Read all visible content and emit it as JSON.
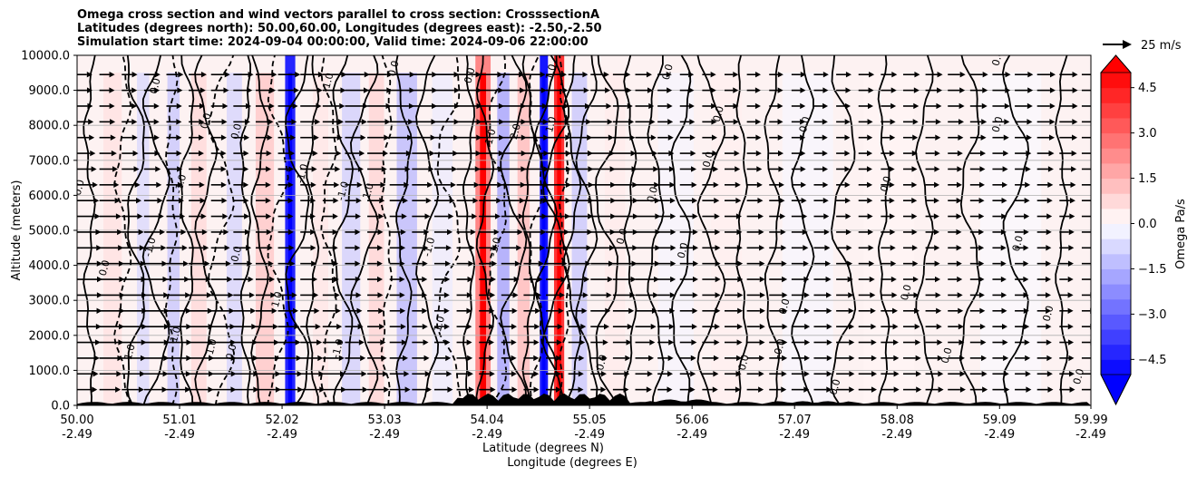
{
  "chart_data": {
    "type": "heatmap",
    "title_lines": [
      "Omega cross section and wind vectors parallel to cross section: CrosssectionA",
      "Latitudes (degrees north): 50.00,60.00, Longitudes (degrees east): -2.50,-2.50",
      "Simulation start time: 2024-09-04 00:00:00, Valid time: 2024-09-06 22:00:00"
    ],
    "ylabel": "Altitude (meters)",
    "xlabel_lat": "Latitude (degrees N)",
    "xlabel_lon": "Longitude (degrees E)",
    "ylim": [
      0,
      10000
    ],
    "y_ticks": [
      0,
      1000,
      2000,
      3000,
      4000,
      5000,
      6000,
      7000,
      8000,
      9000,
      10000
    ],
    "y_tick_labels": [
      "0.0",
      "1000.0",
      "2000.0",
      "3000.0",
      "4000.0",
      "5000.0",
      "6000.0",
      "7000.0",
      "8000.0",
      "9000.0",
      "10000.0"
    ],
    "xlim": [
      50.0,
      59.99
    ],
    "x_ticks": [
      {
        "lat": "50.00",
        "lon": "-2.49"
      },
      {
        "lat": "51.01",
        "lon": "-2.49"
      },
      {
        "lat": "52.02",
        "lon": "-2.49"
      },
      {
        "lat": "53.03",
        "lon": "-2.49"
      },
      {
        "lat": "54.04",
        "lon": "-2.49"
      },
      {
        "lat": "55.05",
        "lon": "-2.49"
      },
      {
        "lat": "56.06",
        "lon": "-2.49"
      },
      {
        "lat": "57.07",
        "lon": "-2.49"
      },
      {
        "lat": "58.08",
        "lon": "-2.49"
      },
      {
        "lat": "59.09",
        "lon": "-2.49"
      },
      {
        "lat": "59.99",
        "lon": "-2.49"
      }
    ],
    "grid": true,
    "colorbar": {
      "label": "Omega Pa/s",
      "range": [
        -5.0,
        5.0
      ],
      "ticks": [
        -4.5,
        -3.0,
        -1.5,
        0.0,
        1.5,
        3.0,
        4.5
      ],
      "tick_labels": [
        "−4.5",
        "−3.0",
        "−1.5",
        "0.0",
        "1.5",
        "3.0",
        "4.5"
      ],
      "extend": "both",
      "low_color": "#0000ff",
      "high_color": "#ff0000",
      "mid_color": "#ffffff"
    },
    "quiver_key": {
      "label": "25 m/s",
      "speed": 25
    },
    "omega_bands": [
      {
        "lat": 50.35,
        "w": 0.18,
        "v": 0.6
      },
      {
        "lat": 50.65,
        "w": 0.12,
        "v": -0.8
      },
      {
        "lat": 50.95,
        "w": 0.12,
        "v": -1.2
      },
      {
        "lat": 51.2,
        "w": 0.15,
        "v": 0.8
      },
      {
        "lat": 51.55,
        "w": 0.15,
        "v": -0.9
      },
      {
        "lat": 51.85,
        "w": 0.18,
        "v": 1.2
      },
      {
        "lat": 52.1,
        "w": 0.1,
        "v": -4.5
      },
      {
        "lat": 52.4,
        "w": 0.15,
        "v": 0.5
      },
      {
        "lat": 52.7,
        "w": 0.18,
        "v": -1.0
      },
      {
        "lat": 52.95,
        "w": 0.15,
        "v": 0.9
      },
      {
        "lat": 53.25,
        "w": 0.2,
        "v": -1.5
      },
      {
        "lat": 53.6,
        "w": 0.2,
        "v": -0.4
      },
      {
        "lat": 54.0,
        "w": 0.15,
        "v": 2.5
      },
      {
        "lat": 54.2,
        "w": 0.12,
        "v": -2.0
      },
      {
        "lat": 54.4,
        "w": 0.12,
        "v": 1.5
      },
      {
        "lat": 54.6,
        "w": 0.08,
        "v": -4.8
      },
      {
        "lat": 54.75,
        "w": 0.1,
        "v": 4.2
      },
      {
        "lat": 54.95,
        "w": 0.15,
        "v": -1.2
      },
      {
        "lat": 55.3,
        "w": 0.2,
        "v": 0.4
      },
      {
        "lat": 55.9,
        "w": 0.35,
        "v": -0.2
      },
      {
        "lat": 56.4,
        "w": 0.3,
        "v": 0.3
      },
      {
        "lat": 57.2,
        "w": 0.5,
        "v": -0.15
      },
      {
        "lat": 58.0,
        "w": 0.5,
        "v": 0.2
      },
      {
        "lat": 59.2,
        "w": 0.6,
        "v": -0.1
      }
    ],
    "contour_labels": [
      {
        "lat": 50.05,
        "alt": 6200,
        "text": "0.0"
      },
      {
        "lat": 50.3,
        "alt": 3900,
        "text": "0.0"
      },
      {
        "lat": 50.55,
        "alt": 1500,
        "text": "1.0"
      },
      {
        "lat": 50.75,
        "alt": 4500,
        "text": "-1.0"
      },
      {
        "lat": 50.8,
        "alt": 9100,
        "text": "0.0"
      },
      {
        "lat": 51.0,
        "alt": 2000,
        "text": "1.0"
      },
      {
        "lat": 51.05,
        "alt": 6300,
        "text": "-1.0"
      },
      {
        "lat": 51.35,
        "alt": 1600,
        "text": "-1.0"
      },
      {
        "lat": 51.3,
        "alt": 8100,
        "text": "0.0"
      },
      {
        "lat": 51.55,
        "alt": 1500,
        "text": "0.0"
      },
      {
        "lat": 51.6,
        "alt": 4300,
        "text": "0.0"
      },
      {
        "lat": 51.6,
        "alt": 7800,
        "text": "0.0"
      },
      {
        "lat": 52.0,
        "alt": 3000,
        "text": "1.0"
      },
      {
        "lat": 52.25,
        "alt": 6600,
        "text": "-1.0"
      },
      {
        "lat": 52.5,
        "alt": 9200,
        "text": "-1.0"
      },
      {
        "lat": 52.6,
        "alt": 1600,
        "text": "-1.0"
      },
      {
        "lat": 52.65,
        "alt": 6100,
        "text": "-1.0"
      },
      {
        "lat": 52.9,
        "alt": 6100,
        "text": "1.0"
      },
      {
        "lat": 53.15,
        "alt": 9600,
        "text": "0.0"
      },
      {
        "lat": 53.5,
        "alt": 4500,
        "text": "-1.0"
      },
      {
        "lat": 53.6,
        "alt": 2300,
        "text": "1.0"
      },
      {
        "lat": 53.9,
        "alt": 9400,
        "text": "0.0"
      },
      {
        "lat": 54.1,
        "alt": 7600,
        "text": "-1.0"
      },
      {
        "lat": 54.15,
        "alt": 4500,
        "text": "-1.0"
      },
      {
        "lat": 54.35,
        "alt": 7800,
        "text": "2.0"
      },
      {
        "lat": 54.7,
        "alt": 8000,
        "text": "1.0"
      },
      {
        "lat": 54.7,
        "alt": 9500,
        "text": "1.0"
      },
      {
        "lat": 55.2,
        "alt": 1200,
        "text": "0.0"
      },
      {
        "lat": 55.4,
        "alt": 4800,
        "text": "0.0"
      },
      {
        "lat": 55.7,
        "alt": 6000,
        "text": "0.0"
      },
      {
        "lat": 55.85,
        "alt": 9500,
        "text": "0.0"
      },
      {
        "lat": 56.0,
        "alt": 4400,
        "text": "0.0"
      },
      {
        "lat": 56.35,
        "alt": 8300,
        "text": "0.0"
      },
      {
        "lat": 56.25,
        "alt": 7000,
        "text": "0.0"
      },
      {
        "lat": 56.6,
        "alt": 1200,
        "text": "0.0"
      },
      {
        "lat": 56.95,
        "alt": 1600,
        "text": "-0.0"
      },
      {
        "lat": 57.0,
        "alt": 2800,
        "text": "0.0"
      },
      {
        "lat": 57.2,
        "alt": 8000,
        "text": "0.0"
      },
      {
        "lat": 57.5,
        "alt": 500,
        "text": "0.0"
      },
      {
        "lat": 58.0,
        "alt": 6300,
        "text": "0.0"
      },
      {
        "lat": 58.2,
        "alt": 3200,
        "text": "0.0"
      },
      {
        "lat": 58.6,
        "alt": 1400,
        "text": "0.0"
      },
      {
        "lat": 59.1,
        "alt": 8000,
        "text": "0.0"
      },
      {
        "lat": 59.1,
        "alt": 9900,
        "text": "0.0"
      },
      {
        "lat": 59.3,
        "alt": 4600,
        "text": "0.0"
      },
      {
        "lat": 59.6,
        "alt": 2600,
        "text": "0.0"
      },
      {
        "lat": 59.9,
        "alt": 800,
        "text": "0.0"
      }
    ]
  }
}
